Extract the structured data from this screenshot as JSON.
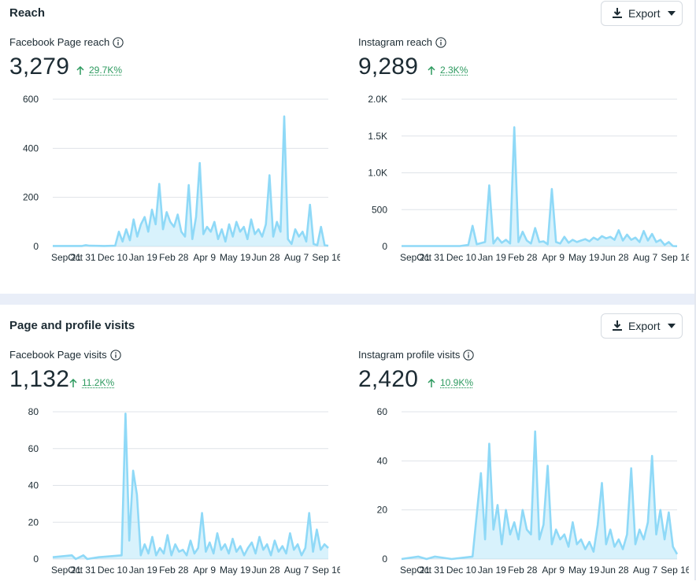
{
  "reach": {
    "title": "Reach",
    "export_label": "Export",
    "panels": [
      {
        "label": "Facebook Page reach",
        "value": "3,279",
        "change": "29.7K%",
        "chart_data": {
          "type": "area",
          "x_labels": [
            "Sep 21",
            "Oct 31",
            "Dec 10",
            "Jan 19",
            "Feb 28",
            "Apr 9",
            "May 19",
            "Jun 28",
            "Aug 7",
            "Sep 16"
          ],
          "y_ticks": [
            "0",
            "200",
            "400",
            "600"
          ],
          "ylim": [
            0,
            600
          ],
          "color": "#8fd9f7",
          "points": [
            [
              0,
              2
            ],
            [
              8,
              2
            ],
            [
              9,
              5
            ],
            [
              10,
              3
            ],
            [
              14,
              2
            ],
            [
              17,
              3
            ],
            [
              18,
              60
            ],
            [
              19,
              20
            ],
            [
              20,
              70
            ],
            [
              21,
              25
            ],
            [
              22,
              110
            ],
            [
              23,
              40
            ],
            [
              24,
              90
            ],
            [
              25,
              120
            ],
            [
              26,
              60
            ],
            [
              27,
              150
            ],
            [
              28,
              90
            ],
            [
              29,
              255
            ],
            [
              30,
              70
            ],
            [
              31,
              140
            ],
            [
              32,
              100
            ],
            [
              33,
              80
            ],
            [
              34,
              130
            ],
            [
              35,
              60
            ],
            [
              36,
              40
            ],
            [
              37,
              250
            ],
            [
              38,
              30
            ],
            [
              39,
              120
            ],
            [
              40,
              340
            ],
            [
              41,
              50
            ],
            [
              42,
              80
            ],
            [
              43,
              60
            ],
            [
              44,
              100
            ],
            [
              45,
              30
            ],
            [
              46,
              70
            ],
            [
              47,
              20
            ],
            [
              48,
              90
            ],
            [
              49,
              40
            ],
            [
              50,
              100
            ],
            [
              51,
              60
            ],
            [
              52,
              80
            ],
            [
              53,
              30
            ],
            [
              54,
              110
            ],
            [
              55,
              50
            ],
            [
              56,
              70
            ],
            [
              57,
              40
            ],
            [
              58,
              90
            ],
            [
              59,
              290
            ],
            [
              60,
              40
            ],
            [
              61,
              100
            ],
            [
              62,
              60
            ],
            [
              63,
              530
            ],
            [
              64,
              30
            ],
            [
              65,
              10
            ],
            [
              66,
              70
            ],
            [
              67,
              40
            ],
            [
              68,
              60
            ],
            [
              69,
              20
            ],
            [
              70,
              170
            ],
            [
              71,
              10
            ],
            [
              72,
              5
            ],
            [
              73,
              80
            ],
            [
              74,
              5
            ],
            [
              75,
              3
            ]
          ],
          "max_index": 75
        }
      },
      {
        "label": "Instagram reach",
        "value": "9,289",
        "change": "2.3K%",
        "chart_data": {
          "type": "area",
          "x_labels": [
            "Sep 21",
            "Oct 31",
            "Dec 10",
            "Jan 19",
            "Feb 28",
            "Apr 9",
            "May 19",
            "Jun 28",
            "Aug 7",
            "Sep 16"
          ],
          "y_ticks": [
            "0",
            "500",
            "1.0K",
            "1.5K",
            "2.0K"
          ],
          "ylim": [
            0,
            2000
          ],
          "color": "#8fd9f7",
          "points": [
            [
              0,
              5
            ],
            [
              14,
              5
            ],
            [
              16,
              20
            ],
            [
              17,
              280
            ],
            [
              18,
              30
            ],
            [
              20,
              60
            ],
            [
              21,
              830
            ],
            [
              22,
              40
            ],
            [
              23,
              120
            ],
            [
              24,
              50
            ],
            [
              25,
              90
            ],
            [
              26,
              40
            ],
            [
              27,
              1620
            ],
            [
              28,
              60
            ],
            [
              29,
              200
            ],
            [
              30,
              80
            ],
            [
              31,
              40
            ],
            [
              32,
              250
            ],
            [
              33,
              60
            ],
            [
              34,
              70
            ],
            [
              35,
              30
            ],
            [
              36,
              780
            ],
            [
              37,
              60
            ],
            [
              38,
              40
            ],
            [
              39,
              130
            ],
            [
              40,
              50
            ],
            [
              41,
              90
            ],
            [
              42,
              60
            ],
            [
              43,
              80
            ],
            [
              44,
              100
            ],
            [
              45,
              70
            ],
            [
              46,
              120
            ],
            [
              47,
              90
            ],
            [
              48,
              140
            ],
            [
              49,
              110
            ],
            [
              50,
              130
            ],
            [
              51,
              90
            ],
            [
              52,
              220
            ],
            [
              53,
              80
            ],
            [
              54,
              160
            ],
            [
              55,
              90
            ],
            [
              56,
              120
            ],
            [
              57,
              60
            ],
            [
              58,
              210
            ],
            [
              59,
              80
            ],
            [
              60,
              170
            ],
            [
              61,
              60
            ],
            [
              62,
              90
            ],
            [
              63,
              20
            ],
            [
              64,
              60
            ],
            [
              65,
              5
            ],
            [
              66,
              3
            ]
          ],
          "max_index": 66
        }
      }
    ]
  },
  "visits": {
    "title": "Page and profile visits",
    "export_label": "Export",
    "panels": [
      {
        "label": "Facebook Page visits",
        "value": "1,132",
        "change": "11.2K%",
        "chart_data": {
          "type": "area",
          "x_labels": [
            "Sep 21",
            "Oct 31",
            "Dec 10",
            "Jan 19",
            "Feb 28",
            "Apr 9",
            "May 19",
            "Jun 28",
            "Aug 7",
            "Sep 16"
          ],
          "y_ticks": [
            "0",
            "20",
            "40",
            "60",
            "80"
          ],
          "ylim": [
            0,
            80
          ],
          "color": "#8fd9f7",
          "points": [
            [
              0,
              1
            ],
            [
              5,
              2
            ],
            [
              6,
              0
            ],
            [
              8,
              2
            ],
            [
              9,
              0
            ],
            [
              12,
              1
            ],
            [
              18,
              2
            ],
            [
              19,
              79
            ],
            [
              20,
              10
            ],
            [
              21,
              48
            ],
            [
              22,
              35
            ],
            [
              23,
              2
            ],
            [
              24,
              8
            ],
            [
              25,
              3
            ],
            [
              26,
              12
            ],
            [
              27,
              2
            ],
            [
              28,
              6
            ],
            [
              29,
              3
            ],
            [
              30,
              13
            ],
            [
              31,
              2
            ],
            [
              32,
              8
            ],
            [
              33,
              4
            ],
            [
              34,
              5
            ],
            [
              35,
              2
            ],
            [
              36,
              10
            ],
            [
              37,
              3
            ],
            [
              38,
              6
            ],
            [
              39,
              25
            ],
            [
              40,
              4
            ],
            [
              41,
              9
            ],
            [
              42,
              3
            ],
            [
              43,
              14
            ],
            [
              44,
              5
            ],
            [
              45,
              8
            ],
            [
              46,
              3
            ],
            [
              47,
              11
            ],
            [
              48,
              4
            ],
            [
              49,
              7
            ],
            [
              50,
              2
            ],
            [
              51,
              6
            ],
            [
              52,
              9
            ],
            [
              53,
              3
            ],
            [
              54,
              12
            ],
            [
              55,
              5
            ],
            [
              56,
              8
            ],
            [
              57,
              2
            ],
            [
              58,
              10
            ],
            [
              59,
              4
            ],
            [
              60,
              7
            ],
            [
              61,
              3
            ],
            [
              62,
              14
            ],
            [
              63,
              5
            ],
            [
              64,
              8
            ],
            [
              65,
              2
            ],
            [
              66,
              6
            ],
            [
              67,
              25
            ],
            [
              68,
              4
            ],
            [
              69,
              16
            ],
            [
              70,
              5
            ],
            [
              71,
              8
            ],
            [
              72,
              6
            ]
          ],
          "max_index": 72
        }
      },
      {
        "label": "Instagram profile visits",
        "value": "2,420",
        "change": "10.9K%",
        "chart_data": {
          "type": "area",
          "x_labels": [
            "Sep 21",
            "Oct 31",
            "Dec 10",
            "Jan 19",
            "Feb 28",
            "Apr 9",
            "May 19",
            "Jun 28",
            "Aug 7",
            "Sep 16"
          ],
          "y_ticks": [
            "0",
            "20",
            "40",
            "60"
          ],
          "ylim": [
            0,
            60
          ],
          "color": "#8fd9f7",
          "points": [
            [
              0,
              0
            ],
            [
              4,
              1
            ],
            [
              6,
              0
            ],
            [
              8,
              1
            ],
            [
              12,
              0
            ],
            [
              17,
              1
            ],
            [
              18,
              18
            ],
            [
              19,
              35
            ],
            [
              20,
              8
            ],
            [
              21,
              47
            ],
            [
              22,
              12
            ],
            [
              23,
              22
            ],
            [
              24,
              6
            ],
            [
              25,
              20
            ],
            [
              26,
              10
            ],
            [
              27,
              15
            ],
            [
              28,
              8
            ],
            [
              29,
              20
            ],
            [
              30,
              12
            ],
            [
              31,
              10
            ],
            [
              32,
              52
            ],
            [
              33,
              8
            ],
            [
              34,
              14
            ],
            [
              35,
              38
            ],
            [
              36,
              6
            ],
            [
              37,
              12
            ],
            [
              38,
              8
            ],
            [
              39,
              10
            ],
            [
              40,
              5
            ],
            [
              41,
              15
            ],
            [
              42,
              6
            ],
            [
              43,
              8
            ],
            [
              44,
              4
            ],
            [
              45,
              7
            ],
            [
              46,
              3
            ],
            [
              47,
              14
            ],
            [
              48,
              31
            ],
            [
              49,
              6
            ],
            [
              50,
              12
            ],
            [
              51,
              5
            ],
            [
              52,
              8
            ],
            [
              53,
              4
            ],
            [
              54,
              10
            ],
            [
              55,
              37
            ],
            [
              56,
              6
            ],
            [
              57,
              12
            ],
            [
              58,
              8
            ],
            [
              59,
              15
            ],
            [
              60,
              42
            ],
            [
              61,
              10
            ],
            [
              62,
              20
            ],
            [
              63,
              8
            ],
            [
              64,
              19
            ],
            [
              65,
              5
            ],
            [
              66,
              2
            ]
          ],
          "max_index": 66
        }
      }
    ]
  }
}
